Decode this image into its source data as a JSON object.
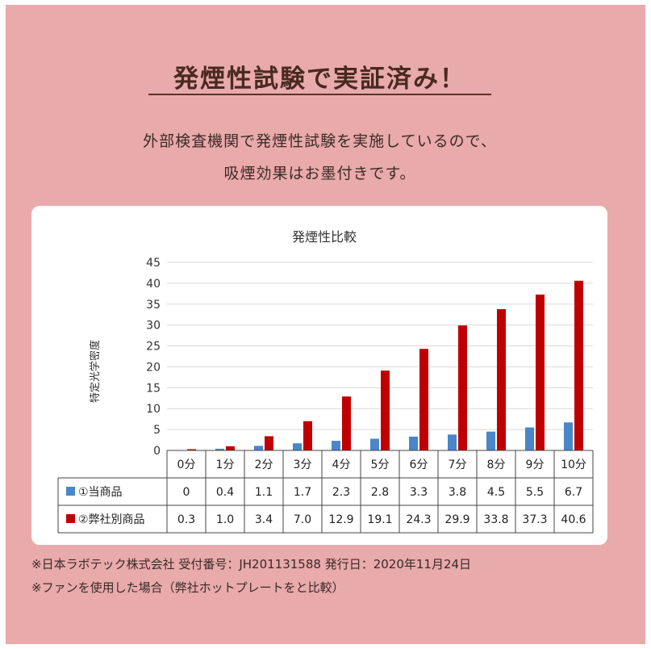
{
  "header": {
    "title": "発煙性試験で実証済み！",
    "line1": "外部検査機関で発煙性試験を実施しているので、",
    "line2": "吸煙効果はお墨付きです。"
  },
  "chart_data": {
    "type": "bar",
    "title": "発煙性比較",
    "ylabel": "特定光学密度",
    "xlabel": "",
    "ylim": [
      0,
      45
    ],
    "yticks": [
      0,
      5,
      10,
      15,
      20,
      25,
      30,
      35,
      40,
      45
    ],
    "categories": [
      "0分",
      "1分",
      "2分",
      "3分",
      "4分",
      "5分",
      "6分",
      "7分",
      "8分",
      "9分",
      "10分"
    ],
    "grid": true,
    "legend": "data-table",
    "series": [
      {
        "name": "①当商品",
        "color": "#4a86c8",
        "values": [
          0,
          0.4,
          1.1,
          1.7,
          2.3,
          2.8,
          3.3,
          3.8,
          4.5,
          5.5,
          6.7
        ]
      },
      {
        "name": "②弊社別商品",
        "color": "#c00000",
        "values": [
          0.3,
          1.0,
          3.4,
          7.0,
          12.9,
          19.1,
          24.3,
          29.9,
          33.8,
          37.3,
          40.6
        ]
      }
    ],
    "table_values": [
      [
        "0",
        "0.4",
        "1.1",
        "1.7",
        "2.3",
        "2.8",
        "3.3",
        "3.8",
        "4.5",
        "5.5",
        "6.7"
      ],
      [
        "0.3",
        "1.0",
        "3.4",
        "7.0",
        "12.9",
        "19.1",
        "24.3",
        "29.9",
        "33.8",
        "37.3",
        "40.6"
      ]
    ]
  },
  "footnotes": {
    "note1": "※日本ラボテック株式会社 受付番号：JH201131588 発行日：2020年11月24日",
    "note2": "※ファンを使用した場合（弊社ホットプレートをと比較）"
  }
}
